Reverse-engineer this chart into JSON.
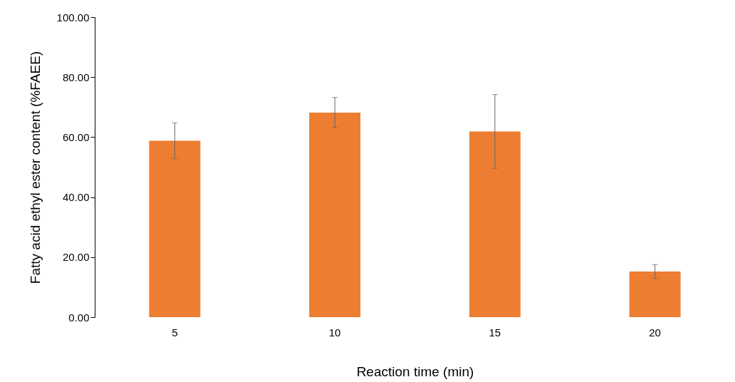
{
  "chart_data": {
    "type": "bar",
    "xlabel": "Reaction time (min)",
    "ylabel": "Fatty acid ethyl ester content (%FAEE)",
    "categories": [
      "5",
      "10",
      "15",
      "20"
    ],
    "values": [
      58.8,
      68.2,
      61.9,
      15.2
    ],
    "errors": [
      6.0,
      5.0,
      12.3,
      2.3
    ],
    "color": "#ed7d31",
    "ylim": [
      0,
      100
    ],
    "yticks": [
      {
        "value": 0,
        "label": "0.00"
      },
      {
        "value": 20,
        "label": "20.00"
      },
      {
        "value": 40,
        "label": "40.00"
      },
      {
        "value": 60,
        "label": "60.00"
      },
      {
        "value": 80,
        "label": "80.00"
      },
      {
        "value": 100,
        "label": "100.00"
      }
    ],
    "grid": false
  }
}
